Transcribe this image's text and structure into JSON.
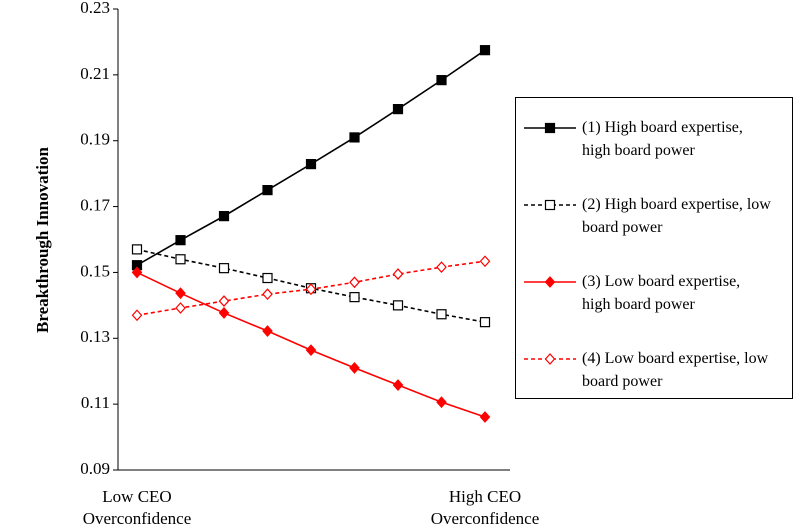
{
  "chart_data": {
    "type": "line",
    "y_label": "Breakthrough Innovation",
    "categories": [
      "Low CEO Overconfidence",
      null,
      null,
      null,
      null,
      null,
      null,
      null,
      "High CEO Overconfidence"
    ],
    "ylim": [
      0.09,
      0.23
    ],
    "yticks": [
      0.09,
      0.11,
      0.13,
      0.15,
      0.17,
      0.19,
      0.21,
      0.23
    ],
    "grid": false,
    "legend": "right",
    "series": [
      {
        "name": "(1) High board expertise, high board power",
        "color": "#000000",
        "marker": "square",
        "filled": true,
        "dashed": false,
        "values": [
          0.1522,
          0.1598,
          0.1671,
          0.175,
          0.1829,
          0.191,
          0.1996,
          0.2084,
          0.2175
        ]
      },
      {
        "name": "(2) High board expertise, low board power",
        "color": "#000000",
        "marker": "square",
        "filled": false,
        "dashed": true,
        "values": [
          0.157,
          0.154,
          0.1513,
          0.1483,
          0.1452,
          0.1425,
          0.14,
          0.1373,
          0.1349
        ]
      },
      {
        "name": "(3) Low board expertise, high board power",
        "color": "#ff0000",
        "marker": "diamond",
        "filled": true,
        "dashed": false,
        "values": [
          0.15,
          0.1437,
          0.1377,
          0.1322,
          0.1264,
          0.121,
          0.1158,
          0.1106,
          0.1061
        ]
      },
      {
        "name": "(4) Low board expertise, low board power",
        "color": "#ff0000",
        "marker": "diamond",
        "filled": false,
        "dashed": true,
        "values": [
          0.137,
          0.1392,
          0.1413,
          0.1434,
          0.1449,
          0.147,
          0.1495,
          0.1516,
          0.1534
        ]
      }
    ]
  }
}
